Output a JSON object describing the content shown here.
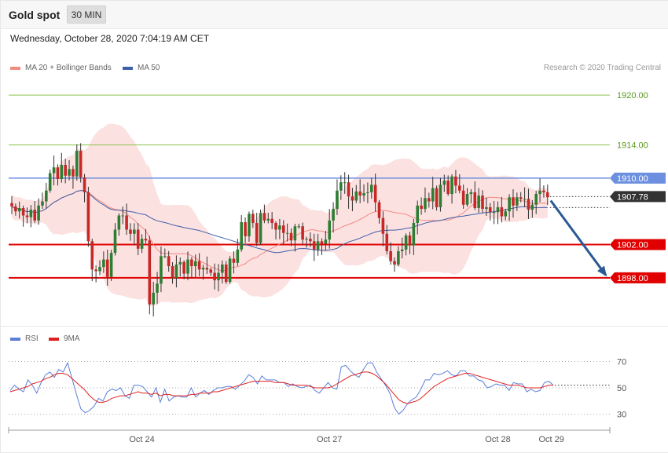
{
  "header": {
    "title": "Gold spot",
    "timeframe": "30 MIN",
    "timestamp": "Wednesday, October 28, 2020 7:04:19 AM CET"
  },
  "legend": {
    "ma20": "MA 20 + Bollinger Bands",
    "ma50": "MA 50",
    "credit": "Research © 2020 Trading Central",
    "rsi": "RSI",
    "rsi_ma": "9MA"
  },
  "colors": {
    "bull": "#2e7d32",
    "bear": "#c62828",
    "band_fill": "#fcdcdc",
    "ma20": "#f28b82",
    "ma50": "#3f5fa8",
    "support": "#e00000",
    "resistance_green": "#8bc34a",
    "resistance_blue": "#6d8fe0",
    "current": "#333333",
    "arrow": "#2a5a94",
    "rsi": "#5b7fd8",
    "rsi_ma": "#e02020"
  },
  "chart_data": [
    {
      "type": "candlestick",
      "instrument": "Gold spot",
      "timeframe": "30 MIN",
      "ylim": [
        1892.5,
        1922.0
      ],
      "levels": [
        {
          "label": "1920.00",
          "value": 1920.0,
          "kind": "resistance",
          "color": "#8bc34a"
        },
        {
          "label": "1914.00",
          "value": 1914.0,
          "kind": "resistance",
          "color": "#8bc34a"
        },
        {
          "label": "1910.00",
          "value": 1910.0,
          "kind": "resistance",
          "color": "#6d8fe0"
        },
        {
          "label": "1907.78",
          "value": 1907.78,
          "kind": "current",
          "color": "#333333"
        },
        {
          "label": "1902.00",
          "value": 1902.0,
          "kind": "support",
          "color": "#e00000"
        },
        {
          "label": "1898.00",
          "value": 1898.0,
          "kind": "support",
          "color": "#e00000"
        }
      ],
      "x_ticks": [
        {
          "label": "Oct 24",
          "index": 34
        },
        {
          "label": "Oct 27",
          "index": 83
        },
        {
          "label": "Oct 28",
          "index": 127
        },
        {
          "label": "Oct 29",
          "index": 141
        }
      ],
      "projection": {
        "from": 1907.3,
        "to": 1898.3
      },
      "candles_close": [
        1906.6,
        1906.0,
        1906.4,
        1905.5,
        1905.3,
        1906.2,
        1904.9,
        1906.7,
        1907.2,
        1908.5,
        1910.6,
        1911.3,
        1909.9,
        1911.6,
        1910.3,
        1911.1,
        1910.2,
        1913.3,
        1910.1,
        1908.3,
        1902.4,
        1899.0,
        1898.8,
        1899.3,
        1900.2,
        1898.1,
        1901.0,
        1903.8,
        1905.5,
        1905.5,
        1903.8,
        1903.3,
        1903.8,
        1901.5,
        1902.7,
        1902.5,
        1894.8,
        1896.2,
        1897.3,
        1900.6,
        1900.6,
        1899.4,
        1898.0,
        1899.6,
        1899.9,
        1898.5,
        1900.2,
        1899.4,
        1900.0,
        1899.0,
        1899.2,
        1899.0,
        1898.6,
        1897.7,
        1898.6,
        1899.6,
        1897.5,
        1900.3,
        1899.8,
        1901.4,
        1904.7,
        1903.0,
        1905.7,
        1904.6,
        1902.2,
        1905.8,
        1904.9,
        1905.1,
        1904.6,
        1903.8,
        1904.3,
        1903.4,
        1903.4,
        1902.5,
        1904.2,
        1904.2,
        1902.6,
        1902.7,
        1902.4,
        1901.4,
        1902.4,
        1902.1,
        1902.6,
        1904.9,
        1906.3,
        1908.5,
        1909.5,
        1909.5,
        1907.8,
        1907.3,
        1908.4,
        1907.9,
        1908.2,
        1908.3,
        1909.2,
        1907.1,
        1905.2,
        1903.3,
        1901.2,
        1900.0,
        1899.6,
        1901.2,
        1901.4,
        1903.1,
        1901.9,
        1904.6,
        1906.7,
        1906.3,
        1907.6,
        1907.2,
        1908.8,
        1906.5,
        1909.2,
        1909.7,
        1908.1,
        1910.2,
        1909.1,
        1908.5,
        1906.8,
        1908.1,
        1908.3,
        1906.4,
        1907.9,
        1906.3,
        1906.5,
        1905.9,
        1905.9,
        1906.5,
        1905.4,
        1906.0,
        1907.7,
        1906.7,
        1907.7,
        1907.5,
        1907.5,
        1906.2,
        1906.8,
        1908.1,
        1908.5,
        1908.3,
        1907.7
      ]
    },
    {
      "type": "line",
      "name": "RSI",
      "ylim": [
        20,
        80
      ],
      "y_ticks": [
        70,
        50,
        30
      ],
      "series": [
        {
          "name": "RSI",
          "values": [
            48,
            52,
            49,
            47,
            56,
            52,
            46,
            54,
            60,
            62,
            58,
            64,
            62,
            69,
            57,
            45,
            34,
            31,
            33,
            36,
            42,
            40,
            47,
            49,
            48,
            50,
            44,
            42,
            52,
            52,
            51,
            47,
            43,
            50,
            39,
            49,
            40,
            43,
            44,
            43,
            43,
            50,
            43,
            46,
            48,
            45,
            48,
            50,
            50,
            51,
            51,
            49,
            52,
            55,
            60,
            58,
            53,
            59,
            56,
            56,
            56,
            54,
            54,
            51,
            53,
            51,
            50,
            51,
            52,
            48,
            46,
            50,
            54,
            50,
            49,
            66,
            67,
            63,
            60,
            58,
            64,
            69,
            69,
            62,
            57,
            52,
            46,
            35,
            30,
            33,
            38,
            41,
            43,
            49,
            56,
            56,
            61,
            60,
            61,
            63,
            60,
            59,
            63,
            63,
            59,
            59,
            56,
            55,
            50,
            51,
            53,
            52,
            52,
            48,
            54,
            53,
            53,
            47,
            49,
            47,
            48,
            54,
            55,
            52
          ]
        },
        {
          "name": "9MA",
          "values": [
            47,
            48,
            49,
            50,
            51,
            53,
            54,
            55,
            57,
            58,
            60,
            61,
            61,
            60,
            57,
            54,
            51,
            48,
            44,
            41,
            39,
            39,
            40,
            42,
            43,
            44,
            44,
            45,
            46,
            47,
            46,
            46,
            45,
            46,
            44,
            45,
            45,
            44,
            44,
            44,
            44,
            45,
            45,
            46,
            46,
            46,
            47,
            47,
            48,
            49,
            50,
            51,
            52,
            53,
            54,
            55,
            55,
            55,
            55,
            55,
            54,
            54,
            54,
            53,
            52,
            52,
            52,
            52,
            51,
            50,
            50,
            50,
            50,
            51,
            53,
            55,
            57,
            59,
            60,
            61,
            62,
            62,
            61,
            59,
            56,
            53,
            49,
            45,
            41,
            39,
            38,
            39,
            40,
            42,
            45,
            48,
            51,
            53,
            55,
            57,
            58,
            59,
            60,
            61,
            61,
            60,
            59,
            58,
            57,
            56,
            55,
            54,
            53,
            52,
            52,
            52,
            51,
            50,
            50,
            50,
            50,
            51,
            52,
            52
          ]
        }
      ]
    }
  ]
}
